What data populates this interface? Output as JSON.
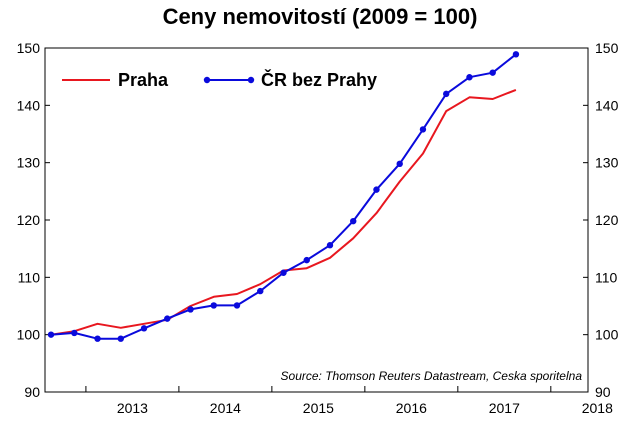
{
  "chart_data": {
    "type": "line",
    "title": "Ceny nemovitostí (2009 = 100)",
    "ylim": [
      90,
      150
    ],
    "yticks": [
      90,
      100,
      110,
      120,
      130,
      140,
      150
    ],
    "xticks": [
      "2013",
      "2014",
      "2015",
      "2016",
      "2017",
      "2018"
    ],
    "xlim": [
      2012.56,
      2018.4
    ],
    "source": "Source: Thomson Reuters Datastream, Ceska sporitelna",
    "legend_position": "top-left",
    "grid": false,
    "series": [
      {
        "name": "Praha",
        "color": "#e8171f",
        "markers": false,
        "x": [
          2012.625,
          2012.875,
          2013.125,
          2013.375,
          2013.625,
          2013.875,
          2014.125,
          2014.375,
          2014.625,
          2014.875,
          2015.125,
          2015.375,
          2015.625,
          2015.875,
          2016.125,
          2016.375,
          2016.625,
          2016.875,
          2017.125,
          2017.375,
          2017.625
        ],
        "y": [
          100.0,
          100.6,
          101.9,
          101.2,
          101.9,
          102.6,
          105.0,
          106.6,
          107.1,
          108.8,
          111.2,
          111.6,
          113.4,
          116.8,
          121.2,
          126.7,
          131.6,
          139.0,
          141.4,
          141.1,
          142.7
        ]
      },
      {
        "name": "ČR bez Prahy",
        "color": "#0a0adc",
        "markers": true,
        "x": [
          2012.625,
          2012.875,
          2013.125,
          2013.375,
          2013.625,
          2013.875,
          2014.125,
          2014.375,
          2014.625,
          2014.875,
          2015.125,
          2015.375,
          2015.625,
          2015.875,
          2016.125,
          2016.375,
          2016.625,
          2016.875,
          2017.125,
          2017.375,
          2017.625
        ],
        "y": [
          100.0,
          100.3,
          99.3,
          99.3,
          101.1,
          102.8,
          104.4,
          105.1,
          105.1,
          107.6,
          110.8,
          113.0,
          115.6,
          119.8,
          125.3,
          129.8,
          135.8,
          142.0,
          144.9,
          145.7,
          148.9
        ]
      }
    ]
  }
}
